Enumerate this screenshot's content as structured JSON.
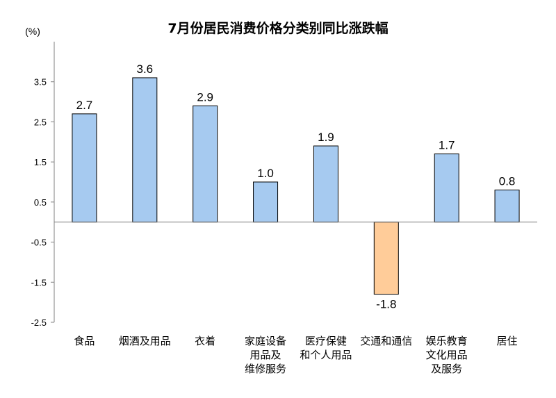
{
  "chart_data": {
    "type": "bar",
    "title": "7月份居民消费价格分类别同比涨跌幅",
    "unit_label": "(%)",
    "xlabel": "",
    "ylabel": "(%)",
    "ylim": [
      -2.5,
      4.5
    ],
    "y_ticks": [
      3.5,
      2.5,
      1.5,
      0.5,
      -0.5,
      -1.5,
      -2.5
    ],
    "y_tick_labels": [
      "3.5",
      "2.5",
      "1.5",
      "0.5",
      "-0.5",
      "-1.5",
      "-2.5"
    ],
    "grid": false,
    "categories": [
      [
        "食品"
      ],
      [
        "烟酒及用品"
      ],
      [
        "衣着"
      ],
      [
        "家庭设备",
        "用品及",
        "维修服务"
      ],
      [
        "医疗保健",
        "和个人用品"
      ],
      [
        "交通和通信"
      ],
      [
        "娱乐教育",
        "文化用品",
        "及服务"
      ],
      [
        "居住"
      ]
    ],
    "values": [
      2.7,
      3.6,
      2.9,
      1.0,
      1.9,
      -1.8,
      1.7,
      0.8
    ],
    "value_labels": [
      "2.7",
      "3.6",
      "2.9",
      "1.0",
      "1.9",
      "-1.8",
      "1.7",
      "0.8"
    ],
    "colors": {
      "positive_fill": "#A6CAF0",
      "negative_fill": "#FFCC99",
      "bar_stroke": "#000000",
      "axis": "#808080"
    }
  }
}
